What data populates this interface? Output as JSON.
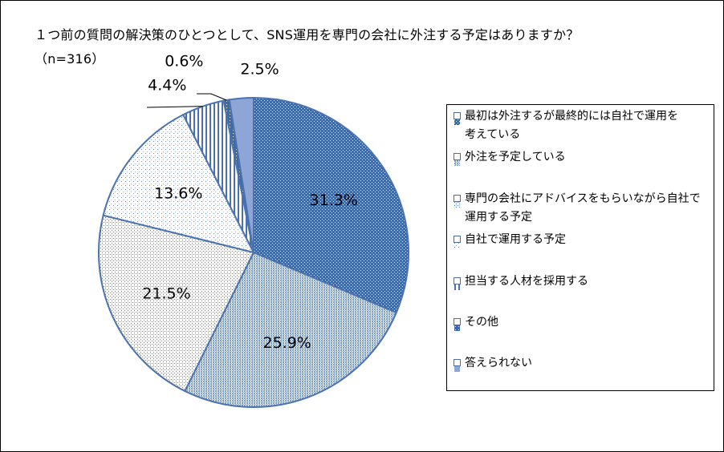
{
  "title": {
    "line1": "１つ前の質問の解決策のひとつとして、SNS運用を専門の会社に外注する予定はありますか？",
    "line2": "（n=316）"
  },
  "chart_data": {
    "type": "pie",
    "title": "１つ前の質問の解決策のひとつとして、SNS運用を専門の会社に外注する予定はありますか？（n=316）",
    "categories": [
      "最初は外注するが最終的には自社で運用を考えている",
      "外注を予定している",
      "専門の会社にアドバイスをもらいながら自社で運用する予定",
      "自社で運用する予定",
      "担当する人材を採用する",
      "その他",
      "答えられない"
    ],
    "values": [
      31.3,
      25.9,
      21.5,
      13.6,
      4.4,
      0.6,
      2.5
    ],
    "labels": [
      "31.3%",
      "25.9%",
      "21.5%",
      "13.6%",
      "4.4%",
      "0.6%",
      "2.5%"
    ],
    "start_angle": "12 o'clock",
    "direction": "clockwise",
    "legend_position": "right",
    "colors": [
      "#3e6aa6",
      "#8fb0d8",
      "#b4c7e2",
      "#d6e1ef",
      "#5578b4",
      "#3e6aa6",
      "#8ea6d6"
    ],
    "patterns": [
      "dense-diamond",
      "dense-dots",
      "fine-dots",
      "sparse-dots",
      "vertical-stripes",
      "dense-diamond",
      "solid"
    ]
  },
  "legend": {
    "items": [
      {
        "line1": "最初は外注するが最終的には自社で運用を",
        "line2": "考えている"
      },
      {
        "line1": "外注を予定している",
        "line2": ""
      },
      {
        "line1": "専門の会社にアドバイスをもらいながら自社で",
        "line2": "運用する予定"
      },
      {
        "line1": "自社で運用する予定",
        "line2": ""
      },
      {
        "line1": "担当する人材を採用する",
        "line2": ""
      },
      {
        "line1": "その他",
        "line2": ""
      },
      {
        "line1": "答えられない",
        "line2": ""
      }
    ]
  }
}
